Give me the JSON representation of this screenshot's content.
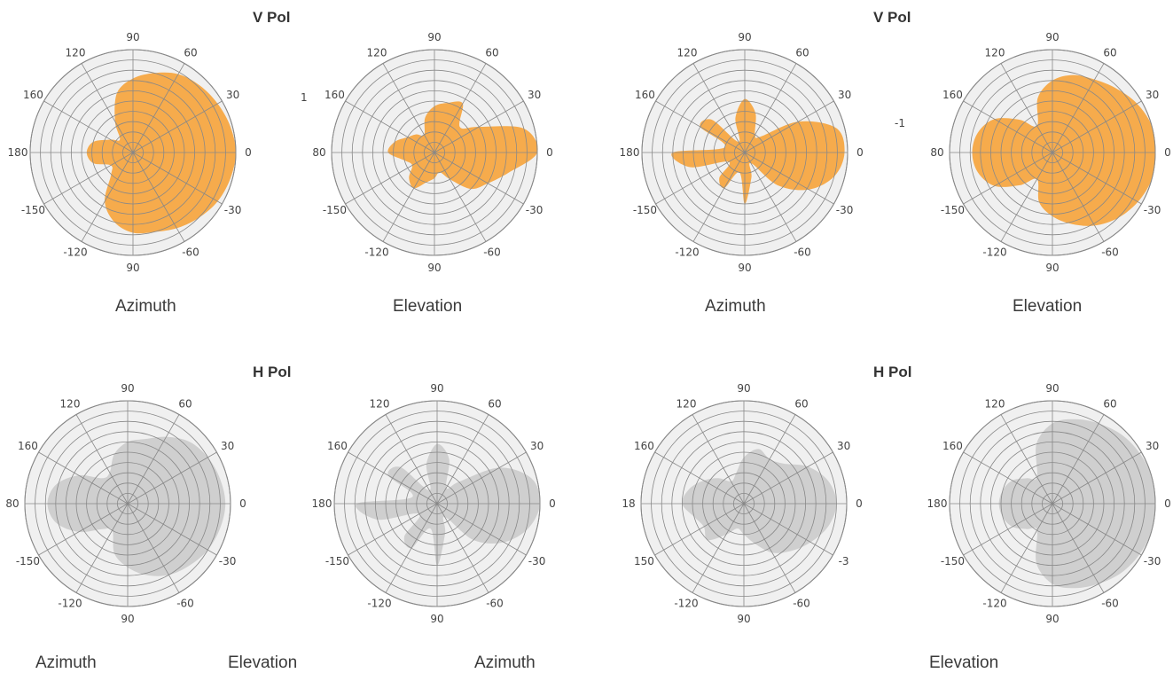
{
  "headings": [
    "V Pol",
    "V Pol",
    "H Pol",
    "H Pol"
  ],
  "captions": [
    "Azimuth",
    "Elevation",
    "Azimuth",
    "Elevation",
    "Azimuth",
    "Elevation",
    "Azimuth",
    "Elevation"
  ],
  "stray_labels": [
    "1",
    "-1"
  ],
  "colors": {
    "vpol_fill": "#f5a742",
    "hpol_fill": "#c9c9c9",
    "grid": "#888888",
    "disc": "#f0f0f0"
  },
  "chart_data": [
    {
      "type": "polar-area",
      "polarization": "V Pol",
      "plane": "Azimuth",
      "fill": "orange",
      "rings": 10,
      "rmax": 1.0,
      "ticks": [
        {
          "angle": 0,
          "label": "0"
        },
        {
          "angle": 30,
          "label": "30"
        },
        {
          "angle": 60,
          "label": "60"
        },
        {
          "angle": 90,
          "label": "90"
        },
        {
          "angle": 120,
          "label": "120"
        },
        {
          "angle": 150,
          "label": "160"
        },
        {
          "angle": 180,
          "label": "180"
        },
        {
          "angle": 210,
          "label": "-150"
        },
        {
          "angle": 240,
          "label": "-120"
        },
        {
          "angle": 270,
          "label": "90"
        },
        {
          "angle": 300,
          "label": "-60"
        },
        {
          "angle": 330,
          "label": "-30"
        }
      ],
      "angles": [
        0,
        15,
        30,
        45,
        60,
        75,
        90,
        105,
        120,
        135,
        150,
        165,
        180,
        195,
        210,
        225,
        240,
        255,
        270,
        285,
        300,
        315,
        330,
        345
      ],
      "values": [
        1.0,
        0.98,
        0.95,
        0.92,
        0.88,
        0.8,
        0.72,
        0.6,
        0.35,
        0.18,
        0.25,
        0.4,
        0.45,
        0.4,
        0.25,
        0.3,
        0.55,
        0.7,
        0.78,
        0.8,
        0.85,
        0.9,
        0.95,
        0.98
      ]
    },
    {
      "type": "polar-area",
      "polarization": "V Pol",
      "plane": "Elevation",
      "fill": "orange",
      "rings": 10,
      "rmax": 1.0,
      "ticks": [
        {
          "angle": 0,
          "label": "0"
        },
        {
          "angle": 30,
          "label": "30"
        },
        {
          "angle": 60,
          "label": "60"
        },
        {
          "angle": 90,
          "label": "90"
        },
        {
          "angle": 120,
          "label": "120"
        },
        {
          "angle": 150,
          "label": "160"
        },
        {
          "angle": 180,
          "label": "80"
        },
        {
          "angle": 210,
          "label": "-150"
        },
        {
          "angle": 240,
          "label": "-120"
        },
        {
          "angle": 270,
          "label": "90"
        },
        {
          "angle": 300,
          "label": "-60"
        },
        {
          "angle": 330,
          "label": "-30"
        }
      ],
      "angles": [
        0,
        15,
        30,
        45,
        60,
        75,
        90,
        105,
        120,
        135,
        150,
        165,
        180,
        195,
        210,
        225,
        240,
        255,
        270,
        285,
        300,
        315,
        330,
        345
      ],
      "values": [
        1.0,
        0.9,
        0.5,
        0.35,
        0.55,
        0.5,
        0.45,
        0.35,
        0.2,
        0.25,
        0.3,
        0.4,
        0.45,
        0.3,
        0.25,
        0.35,
        0.4,
        0.3,
        0.25,
        0.2,
        0.3,
        0.5,
        0.6,
        0.75
      ]
    },
    {
      "type": "polar-area",
      "polarization": "V Pol",
      "plane": "Azimuth",
      "fill": "orange",
      "rings": 10,
      "rmax": 1.0,
      "ticks": [
        {
          "angle": 0,
          "label": "0"
        },
        {
          "angle": 30,
          "label": "30"
        },
        {
          "angle": 60,
          "label": "60"
        },
        {
          "angle": 90,
          "label": "90"
        },
        {
          "angle": 120,
          "label": "120"
        },
        {
          "angle": 150,
          "label": "160"
        },
        {
          "angle": 180,
          "label": "180"
        },
        {
          "angle": 210,
          "label": "-150"
        },
        {
          "angle": 240,
          "label": "-120"
        },
        {
          "angle": 270,
          "label": "90"
        },
        {
          "angle": 300,
          "label": "-60"
        },
        {
          "angle": 330,
          "label": "-30"
        }
      ],
      "angles": [
        0,
        15,
        30,
        45,
        60,
        75,
        90,
        105,
        120,
        135,
        150,
        165,
        180,
        195,
        210,
        225,
        240,
        255,
        270,
        285,
        300,
        315,
        330,
        345
      ],
      "values": [
        0.97,
        0.92,
        0.6,
        0.22,
        0.2,
        0.4,
        0.52,
        0.35,
        0.12,
        0.45,
        0.5,
        0.2,
        0.7,
        0.55,
        0.18,
        0.35,
        0.4,
        0.2,
        0.5,
        0.25,
        0.12,
        0.45,
        0.72,
        0.9
      ]
    },
    {
      "type": "polar-area",
      "polarization": "V Pol",
      "plane": "Elevation",
      "fill": "orange",
      "rings": 10,
      "rmax": 1.0,
      "ticks": [
        {
          "angle": 0,
          "label": "0"
        },
        {
          "angle": 30,
          "label": "30"
        },
        {
          "angle": 60,
          "label": "60"
        },
        {
          "angle": 90,
          "label": "90"
        },
        {
          "angle": 120,
          "label": "120"
        },
        {
          "angle": 150,
          "label": "160"
        },
        {
          "angle": 180,
          "label": "80"
        },
        {
          "angle": 210,
          "label": "-150"
        },
        {
          "angle": 240,
          "label": "-120"
        },
        {
          "angle": 270,
          "label": "90"
        },
        {
          "angle": 300,
          "label": "-60"
        },
        {
          "angle": 330,
          "label": "-30"
        }
      ],
      "angles": [
        0,
        15,
        30,
        45,
        60,
        75,
        90,
        105,
        120,
        135,
        150,
        165,
        180,
        195,
        210,
        225,
        240,
        255,
        270,
        285,
        300,
        315,
        330,
        345
      ],
      "values": [
        1.0,
        1.0,
        0.95,
        0.88,
        0.82,
        0.78,
        0.7,
        0.55,
        0.3,
        0.45,
        0.65,
        0.75,
        0.78,
        0.75,
        0.65,
        0.45,
        0.3,
        0.5,
        0.62,
        0.72,
        0.82,
        0.9,
        0.96,
        1.0
      ]
    },
    {
      "type": "polar-area",
      "polarization": "H Pol",
      "plane": "Azimuth",
      "fill": "gray",
      "rings": 10,
      "rmax": 1.0,
      "ticks": [
        {
          "angle": 0,
          "label": "0"
        },
        {
          "angle": 30,
          "label": "30"
        },
        {
          "angle": 60,
          "label": "60"
        },
        {
          "angle": 90,
          "label": "90"
        },
        {
          "angle": 120,
          "label": "120"
        },
        {
          "angle": 150,
          "label": "160"
        },
        {
          "angle": 180,
          "label": "80"
        },
        {
          "angle": 210,
          "label": "-150"
        },
        {
          "angle": 240,
          "label": "-120"
        },
        {
          "angle": 270,
          "label": "90"
        },
        {
          "angle": 300,
          "label": "-60"
        },
        {
          "angle": 330,
          "label": "-30"
        }
      ],
      "angles": [
        0,
        15,
        30,
        45,
        60,
        75,
        90,
        105,
        120,
        135,
        150,
        165,
        180,
        195,
        210,
        225,
        240,
        255,
        270,
        285,
        300,
        315,
        330,
        345
      ],
      "values": [
        0.95,
        0.93,
        0.9,
        0.85,
        0.75,
        0.65,
        0.6,
        0.5,
        0.35,
        0.35,
        0.55,
        0.72,
        0.78,
        0.72,
        0.55,
        0.35,
        0.3,
        0.5,
        0.62,
        0.72,
        0.8,
        0.85,
        0.9,
        0.93
      ]
    },
    {
      "type": "polar-area",
      "polarization": "H Pol",
      "plane": "Elevation",
      "fill": "gray",
      "rings": 10,
      "rmax": 1.0,
      "ticks": [
        {
          "angle": 0,
          "label": "0"
        },
        {
          "angle": 30,
          "label": "30"
        },
        {
          "angle": 60,
          "label": "60"
        },
        {
          "angle": 90,
          "label": "90"
        },
        {
          "angle": 120,
          "label": "120"
        },
        {
          "angle": 150,
          "label": "160"
        },
        {
          "angle": 180,
          "label": "180"
        },
        {
          "angle": 210,
          "label": "-150"
        },
        {
          "angle": 240,
          "label": "-120"
        },
        {
          "angle": 270,
          "label": "90"
        },
        {
          "angle": 300,
          "label": "-60"
        },
        {
          "angle": 330,
          "label": "-30"
        }
      ],
      "angles": [
        0,
        15,
        30,
        45,
        60,
        75,
        90,
        105,
        120,
        135,
        150,
        165,
        180,
        195,
        210,
        225,
        240,
        255,
        270,
        285,
        300,
        315,
        330,
        345
      ],
      "values": [
        1.0,
        0.95,
        0.7,
        0.3,
        0.18,
        0.45,
        0.58,
        0.4,
        0.15,
        0.5,
        0.55,
        0.25,
        0.78,
        0.6,
        0.2,
        0.45,
        0.5,
        0.25,
        0.6,
        0.3,
        0.15,
        0.5,
        0.75,
        0.92
      ]
    },
    {
      "type": "polar-area",
      "polarization": "H Pol",
      "plane": "Azimuth",
      "fill": "gray",
      "rings": 10,
      "rmax": 1.0,
      "ticks": [
        {
          "angle": 0,
          "label": "0"
        },
        {
          "angle": 30,
          "label": "30"
        },
        {
          "angle": 60,
          "label": "60"
        },
        {
          "angle": 90,
          "label": "90"
        },
        {
          "angle": 120,
          "label": "120"
        },
        {
          "angle": 150,
          "label": "160"
        },
        {
          "angle": 180,
          "label": "18"
        },
        {
          "angle": 210,
          "label": "150"
        },
        {
          "angle": 240,
          "label": "-120"
        },
        {
          "angle": 270,
          "label": "90"
        },
        {
          "angle": 300,
          "label": "-60"
        },
        {
          "angle": 330,
          "label": "-3"
        }
      ],
      "angles": [
        0,
        15,
        30,
        45,
        60,
        75,
        90,
        105,
        120,
        135,
        150,
        165,
        180,
        195,
        210,
        225,
        240,
        255,
        270,
        285,
        300,
        315,
        330,
        345
      ],
      "values": [
        0.9,
        0.85,
        0.72,
        0.55,
        0.5,
        0.55,
        0.45,
        0.3,
        0.25,
        0.35,
        0.45,
        0.55,
        0.6,
        0.5,
        0.45,
        0.5,
        0.35,
        0.25,
        0.3,
        0.4,
        0.55,
        0.65,
        0.75,
        0.85
      ]
    },
    {
      "type": "polar-area",
      "polarization": "H Pol",
      "plane": "Elevation",
      "fill": "gray",
      "rings": 10,
      "rmax": 1.0,
      "ticks": [
        {
          "angle": 0,
          "label": "0"
        },
        {
          "angle": 30,
          "label": "30"
        },
        {
          "angle": 60,
          "label": "60"
        },
        {
          "angle": 90,
          "label": "90"
        },
        {
          "angle": 120,
          "label": "120"
        },
        {
          "angle": 150,
          "label": "160"
        },
        {
          "angle": 180,
          "label": "180"
        },
        {
          "angle": 210,
          "label": "-150"
        },
        {
          "angle": 240,
          "label": "-120"
        },
        {
          "angle": 270,
          "label": "90"
        },
        {
          "angle": 300,
          "label": "-60"
        },
        {
          "angle": 330,
          "label": "-30"
        }
      ],
      "angles": [
        0,
        15,
        30,
        45,
        60,
        75,
        90,
        105,
        120,
        135,
        150,
        165,
        180,
        195,
        210,
        225,
        240,
        255,
        270,
        285,
        300,
        315,
        330,
        345
      ],
      "values": [
        1.0,
        1.0,
        0.98,
        0.95,
        0.9,
        0.85,
        0.78,
        0.6,
        0.3,
        0.35,
        0.45,
        0.5,
        0.52,
        0.5,
        0.45,
        0.35,
        0.3,
        0.6,
        0.78,
        0.85,
        0.9,
        0.95,
        0.98,
        1.0
      ]
    }
  ]
}
